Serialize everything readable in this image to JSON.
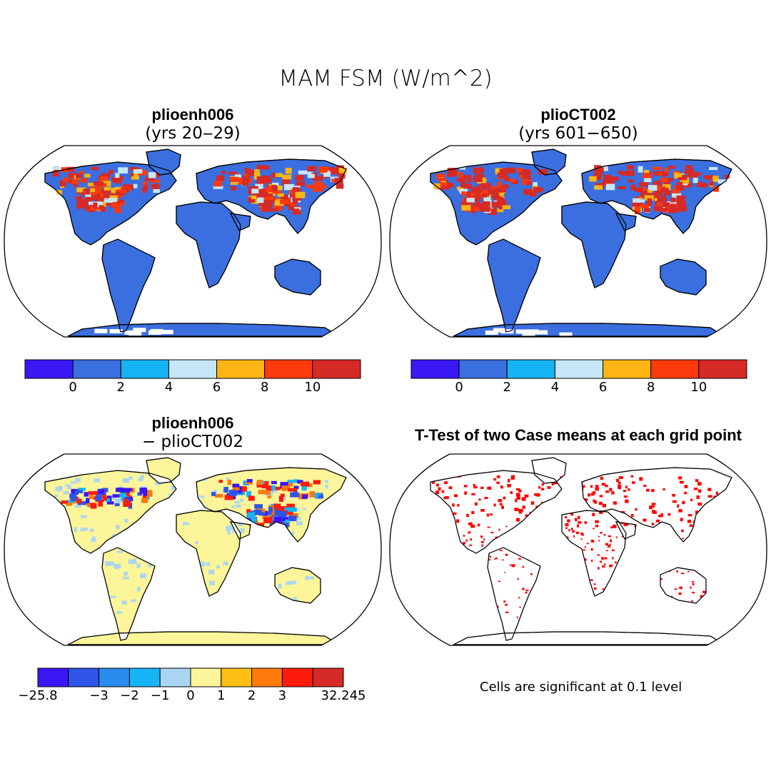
{
  "title": "MAM FSM (W/m^2)",
  "panels": [
    {
      "id": "p1",
      "title": "plioenh006",
      "subtitle": "(yrs 20‒29)",
      "type": "field"
    },
    {
      "id": "p2",
      "title": "plioCT002",
      "subtitle": "(yrs 601−650)",
      "type": "field"
    },
    {
      "id": "p3",
      "title": "plioenh006",
      "subtitle": "− plioCT002",
      "type": "difference"
    },
    {
      "id": "p4",
      "title": "T-Test of two Case means at each grid point",
      "subtitle": "",
      "type": "significance"
    }
  ],
  "colorbars": {
    "field": {
      "colors": [
        "#3a17f5",
        "#3b6fe0",
        "#17b4f5",
        "#c6e6f7",
        "#fdb515",
        "#fd3a0b",
        "#d52a26"
      ],
      "ticks": [
        "0",
        "2",
        "4",
        "6",
        "8",
        "10"
      ]
    },
    "difference": {
      "colors": [
        "#3a17f5",
        "#2f55e8",
        "#2b8cf0",
        "#17b4f5",
        "#a9d5f2",
        "#fdf59a",
        "#fdbe15",
        "#fd7a0b",
        "#fd1b0b",
        "#d52a26"
      ],
      "ticks": [
        "−25.8",
        "−3",
        "−2",
        "−1",
        "0",
        "1",
        "2",
        "3",
        "32.245"
      ]
    }
  },
  "note": "Cells are significant at 0.1 level",
  "colors": {
    "land_field": "#3b6fe0",
    "snow_red": "#e02a1a",
    "diff_land": "#fdf59a",
    "diff_blue": "#a9d5f2",
    "significant": "#ff0000",
    "outline": "#000000"
  }
}
